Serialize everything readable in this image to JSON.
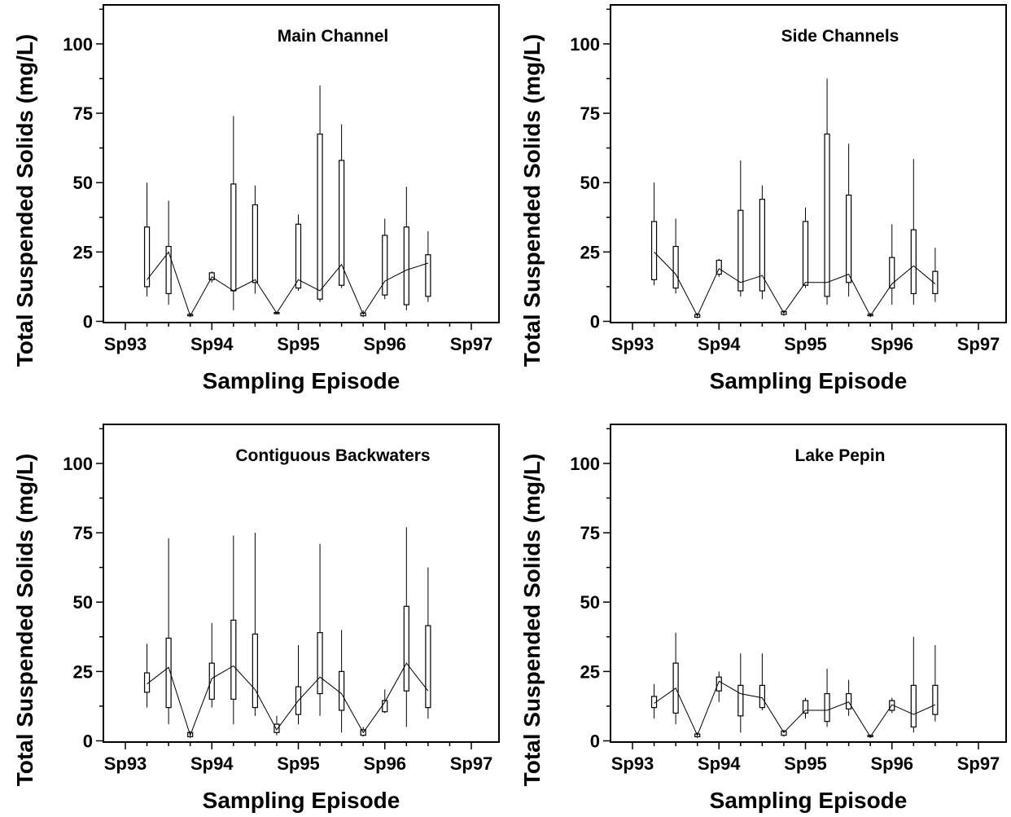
{
  "figure": {
    "ylabel": "Total Suspended Solids (mg/L)",
    "xlabel": "Sampling Episode"
  },
  "chart_data": [
    {
      "type": "box",
      "title": "Main Channel",
      "xlabel": "Sampling Episode",
      "ylabel": "Total Suspended Solids (mg/L)",
      "ylim": [
        0,
        114
      ],
      "yticks": [
        0,
        25,
        50,
        75,
        100
      ],
      "x_ticks": [
        "Sp93",
        "Sp94",
        "Sp95",
        "Sp96",
        "Sp97"
      ],
      "grid": false,
      "boxes": [
        {
          "x": 0.25,
          "min": 9,
          "q1": 12.5,
          "median": 15,
          "q3": 34,
          "max": 50
        },
        {
          "x": 0.5,
          "min": 6,
          "q1": 10,
          "median": 25,
          "q3": 27,
          "max": 43.5
        },
        {
          "x": 0.75,
          "min": 1.5,
          "q1": 2,
          "median": 2,
          "q3": 2.5,
          "max": 3
        },
        {
          "x": 1.0,
          "min": 14,
          "q1": 15,
          "median": 16,
          "q3": 17.5,
          "max": 18
        },
        {
          "x": 1.25,
          "min": 4,
          "q1": 11,
          "median": 11,
          "q3": 49.5,
          "max": 74
        },
        {
          "x": 1.5,
          "min": 10,
          "q1": 14,
          "median": 15,
          "q3": 42,
          "max": 49
        },
        {
          "x": 1.75,
          "min": 2.5,
          "q1": 2.8,
          "median": 3,
          "q3": 3.2,
          "max": 3.5
        },
        {
          "x": 2.0,
          "min": 11,
          "q1": 12,
          "median": 15,
          "q3": 35,
          "max": 38.5
        },
        {
          "x": 2.25,
          "min": 7,
          "q1": 8,
          "median": 11,
          "q3": 67.5,
          "max": 85
        },
        {
          "x": 2.5,
          "min": 12,
          "q1": 13,
          "median": 20.5,
          "q3": 58,
          "max": 71
        },
        {
          "x": 2.75,
          "min": 1.5,
          "q1": 2,
          "median": 2.5,
          "q3": 3,
          "max": 4
        },
        {
          "x": 3.0,
          "min": 8,
          "q1": 9.5,
          "median": 14.5,
          "q3": 31,
          "max": 37
        },
        {
          "x": 3.25,
          "min": 4,
          "q1": 6,
          "median": 18.5,
          "q3": 34,
          "max": 48.5
        },
        {
          "x": 3.5,
          "min": 7,
          "q1": 9,
          "median": 21,
          "q3": 24,
          "max": 32.5
        }
      ]
    },
    {
      "type": "box",
      "title": "Side Channels",
      "xlabel": "Sampling Episode",
      "ylabel": "Total Suspended Solids (mg/L)",
      "ylim": [
        0,
        114
      ],
      "yticks": [
        0,
        25,
        50,
        75,
        100
      ],
      "x_ticks": [
        "Sp93",
        "Sp94",
        "Sp95",
        "Sp96",
        "Sp97"
      ],
      "grid": false,
      "boxes": [
        {
          "x": 0.25,
          "min": 13,
          "q1": 15,
          "median": 25,
          "q3": 36,
          "max": 50
        },
        {
          "x": 0.5,
          "min": 10,
          "q1": 12,
          "median": 17,
          "q3": 27,
          "max": 37
        },
        {
          "x": 0.75,
          "min": 1,
          "q1": 1.5,
          "median": 2,
          "q3": 2.5,
          "max": 3
        },
        {
          "x": 1.0,
          "min": 16,
          "q1": 17,
          "median": 19,
          "q3": 22,
          "max": 22.5
        },
        {
          "x": 1.25,
          "min": 9,
          "q1": 11,
          "median": 14,
          "q3": 40,
          "max": 58
        },
        {
          "x": 1.5,
          "min": 8,
          "q1": 11,
          "median": 16.5,
          "q3": 44,
          "max": 49
        },
        {
          "x": 1.75,
          "min": 2,
          "q1": 2.5,
          "median": 3,
          "q3": 3.5,
          "max": 4
        },
        {
          "x": 2.0,
          "min": 12,
          "q1": 13,
          "median": 14,
          "q3": 36,
          "max": 41
        },
        {
          "x": 2.25,
          "min": 6,
          "q1": 9,
          "median": 14,
          "q3": 67.5,
          "max": 87.5
        },
        {
          "x": 2.5,
          "min": 9,
          "q1": 14,
          "median": 17,
          "q3": 45.5,
          "max": 64
        },
        {
          "x": 2.75,
          "min": 1.5,
          "q1": 2,
          "median": 2,
          "q3": 2.5,
          "max": 3
        },
        {
          "x": 3.0,
          "min": 6,
          "q1": 12,
          "median": 13.5,
          "q3": 23,
          "max": 35
        },
        {
          "x": 3.25,
          "min": 6,
          "q1": 10,
          "median": 20,
          "q3": 33,
          "max": 58.5
        },
        {
          "x": 3.5,
          "min": 7,
          "q1": 10,
          "median": 13.5,
          "q3": 18,
          "max": 26.5
        }
      ]
    },
    {
      "type": "box",
      "title": "Contiguous Backwaters",
      "xlabel": "Sampling Episode",
      "ylabel": "Total Suspended Solids (mg/L)",
      "ylim": [
        0,
        114
      ],
      "yticks": [
        0,
        25,
        50,
        75,
        100
      ],
      "x_ticks": [
        "Sp93",
        "Sp94",
        "Sp95",
        "Sp96",
        "Sp97"
      ],
      "grid": false,
      "boxes": [
        {
          "x": 0.25,
          "min": 12,
          "q1": 17.5,
          "median": 20.5,
          "q3": 24.5,
          "max": 35
        },
        {
          "x": 0.5,
          "min": 6,
          "q1": 12,
          "median": 26.5,
          "q3": 37,
          "max": 73
        },
        {
          "x": 0.75,
          "min": 1,
          "q1": 1.5,
          "median": 2,
          "q3": 3,
          "max": 3.5
        },
        {
          "x": 1.0,
          "min": 12,
          "q1": 15,
          "median": 22.5,
          "q3": 28,
          "max": 42.5
        },
        {
          "x": 1.25,
          "min": 6,
          "q1": 15,
          "median": 27,
          "q3": 43.5,
          "max": 74
        },
        {
          "x": 1.5,
          "min": 9,
          "q1": 12,
          "median": 18.5,
          "q3": 38.5,
          "max": 75
        },
        {
          "x": 1.75,
          "min": 2,
          "q1": 3,
          "median": 4,
          "q3": 6,
          "max": 9
        },
        {
          "x": 2.0,
          "min": 6,
          "q1": 9.5,
          "median": 14.5,
          "q3": 19.5,
          "max": 34.5
        },
        {
          "x": 2.25,
          "min": 9,
          "q1": 17,
          "median": 23,
          "q3": 39,
          "max": 71
        },
        {
          "x": 2.5,
          "min": 3,
          "q1": 11,
          "median": 17,
          "q3": 25,
          "max": 40
        },
        {
          "x": 2.75,
          "min": 1.5,
          "q1": 2,
          "median": 3,
          "q3": 4,
          "max": 5
        },
        {
          "x": 3.0,
          "min": 10,
          "q1": 10.5,
          "median": 14,
          "q3": 14.5,
          "max": 18.5
        },
        {
          "x": 3.25,
          "min": 5,
          "q1": 18,
          "median": 28,
          "q3": 48.5,
          "max": 77
        },
        {
          "x": 3.5,
          "min": 8,
          "q1": 12,
          "median": 18,
          "q3": 41.5,
          "max": 62.5
        }
      ]
    },
    {
      "type": "box",
      "title": "Lake Pepin",
      "xlabel": "Sampling Episode",
      "ylabel": "Total Suspended Solids (mg/L)",
      "ylim": [
        0,
        114
      ],
      "yticks": [
        0,
        25,
        50,
        75,
        100
      ],
      "x_ticks": [
        "Sp93",
        "Sp94",
        "Sp95",
        "Sp96",
        "Sp97"
      ],
      "grid": false,
      "boxes": [
        {
          "x": 0.25,
          "min": 8,
          "q1": 12,
          "median": 13.5,
          "q3": 16,
          "max": 20.5
        },
        {
          "x": 0.5,
          "min": 6,
          "q1": 10,
          "median": 19,
          "q3": 28,
          "max": 39
        },
        {
          "x": 0.75,
          "min": 1,
          "q1": 1.5,
          "median": 2,
          "q3": 2.5,
          "max": 3
        },
        {
          "x": 1.0,
          "min": 14,
          "q1": 18,
          "median": 21.5,
          "q3": 23,
          "max": 25
        },
        {
          "x": 1.25,
          "min": 3,
          "q1": 9,
          "median": 17,
          "q3": 20,
          "max": 31.5
        },
        {
          "x": 1.5,
          "min": 11,
          "q1": 12,
          "median": 15.5,
          "q3": 20,
          "max": 31.5
        },
        {
          "x": 1.75,
          "min": 1.5,
          "q1": 2,
          "median": 3,
          "q3": 3.5,
          "max": 4
        },
        {
          "x": 2.0,
          "min": 8,
          "q1": 10,
          "median": 11,
          "q3": 14.5,
          "max": 15.5
        },
        {
          "x": 2.25,
          "min": 5,
          "q1": 7,
          "median": 11,
          "q3": 17,
          "max": 26
        },
        {
          "x": 2.5,
          "min": 9,
          "q1": 11.5,
          "median": 14,
          "q3": 17,
          "max": 22
        },
        {
          "x": 2.75,
          "min": 1,
          "q1": 1.5,
          "median": 1.5,
          "q3": 2,
          "max": 2
        },
        {
          "x": 3.0,
          "min": 10,
          "q1": 11,
          "median": 13,
          "q3": 14.5,
          "max": 15.5
        },
        {
          "x": 3.25,
          "min": 3,
          "q1": 5,
          "median": 9.5,
          "q3": 20,
          "max": 37.5
        },
        {
          "x": 3.5,
          "min": 7,
          "q1": 9.5,
          "median": 13,
          "q3": 20,
          "max": 34.5
        }
      ]
    }
  ]
}
